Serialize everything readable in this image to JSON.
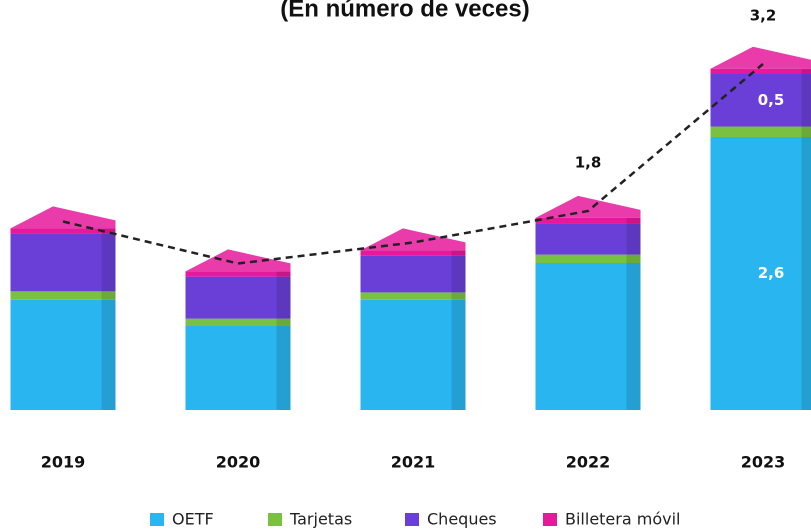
{
  "chart_data": {
    "type": "stacked_bar",
    "title": "(En número de veces)",
    "categories": [
      "2019",
      "2020",
      "2021",
      "2022",
      "2023"
    ],
    "series": [
      {
        "name": "OETF",
        "color": "#29b6f0",
        "values": [
          1.05,
          0.8,
          1.05,
          1.4,
          2.6
        ],
        "value_labels": [
          null,
          null,
          null,
          null,
          "2,6"
        ]
      },
      {
        "name": "Tarjetas",
        "color": "#7ac142",
        "values": [
          0.08,
          0.07,
          0.07,
          0.08,
          0.1
        ]
      },
      {
        "name": "Cheques",
        "color": "#6a3fd8",
        "values": [
          0.55,
          0.4,
          0.35,
          0.3,
          0.5
        ],
        "value_labels": [
          null,
          null,
          null,
          null,
          "0,5"
        ]
      },
      {
        "name": "Billetera móvil",
        "color": "#e6199b",
        "values": [
          0.05,
          0.05,
          0.05,
          0.05,
          0.05
        ]
      }
    ],
    "totals": {
      "values": [
        1.7,
        1.3,
        1.5,
        1.8,
        3.2
      ],
      "value_labels": [
        null,
        null,
        null,
        "1,8",
        "3,2"
      ],
      "color": "#222"
    },
    "ylim": [
      0,
      3.4
    ]
  }
}
